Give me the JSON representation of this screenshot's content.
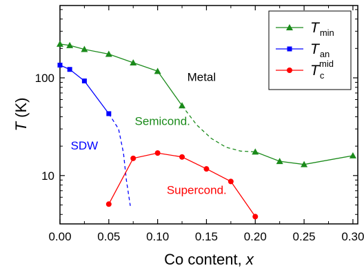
{
  "chart_data": {
    "type": "line",
    "xlabel": "Co content, x",
    "xlabel_prefix": "Co content, ",
    "xlabel_var": "x",
    "ylabel": "T (K)",
    "ylabel_var": "T",
    "ylabel_unit": " (K)",
    "x_ticks": [
      "0.00",
      "0.05",
      "0.10",
      "0.15",
      "0.20",
      "0.25",
      "0.30"
    ],
    "x_tick_values": [
      0.0,
      0.05,
      0.1,
      0.15,
      0.2,
      0.25,
      0.3
    ],
    "y_ticks": [
      "10",
      "100"
    ],
    "y_tick_values": [
      10,
      100
    ],
    "xlim": [
      0.0,
      0.305
    ],
    "ylim": [
      3.2,
      550
    ],
    "y_scale": "log",
    "legend_position": "top-right",
    "series": [
      {
        "name": "T_min",
        "legend_main": "T",
        "legend_sub": "min",
        "legend_sup": "",
        "color": "#1a8a1a",
        "marker": "triangle",
        "points": [
          [
            0.0,
            222
          ],
          [
            0.01,
            215
          ],
          [
            0.025,
            196
          ],
          [
            0.05,
            175
          ],
          [
            0.075,
            143
          ],
          [
            0.1,
            117
          ],
          [
            0.125,
            52
          ],
          [
            0.2,
            17.5
          ],
          [
            0.225,
            14
          ],
          [
            0.25,
            13
          ],
          [
            0.3,
            16
          ]
        ]
      },
      {
        "name": "T_an",
        "legend_main": "T",
        "legend_sub": "an",
        "legend_sup": "",
        "color": "#0000ff",
        "marker": "square",
        "points": [
          [
            0.0,
            135
          ],
          [
            0.01,
            122
          ],
          [
            0.025,
            93
          ],
          [
            0.05,
            43
          ]
        ]
      },
      {
        "name": "T_c^mid",
        "legend_main": "T",
        "legend_sub": "c",
        "legend_sup": "mid",
        "color": "#ff0000",
        "marker": "circle",
        "points": [
          [
            0.05,
            5.1
          ],
          [
            0.075,
            15
          ],
          [
            0.1,
            17
          ],
          [
            0.125,
            15.5
          ],
          [
            0.15,
            11.7
          ],
          [
            0.175,
            8.7
          ],
          [
            0.2,
            3.8
          ]
        ]
      }
    ],
    "dashed_lines": [
      {
        "color": "#1a8a1a",
        "points": [
          [
            0.125,
            52
          ],
          [
            0.14,
            33
          ],
          [
            0.155,
            24
          ],
          [
            0.17,
            19.5
          ],
          [
            0.185,
            17.8
          ],
          [
            0.2,
            17.5
          ]
        ]
      },
      {
        "color": "#0000ff",
        "points": [
          [
            0.05,
            43
          ],
          [
            0.06,
            30
          ],
          [
            0.065,
            17
          ],
          [
            0.068,
            9
          ],
          [
            0.072,
            4.9
          ]
        ]
      }
    ],
    "annotations": [
      {
        "text": "Metal",
        "x": 0.145,
        "y": 93,
        "color": "#000000"
      },
      {
        "text": "Semicond.",
        "x": 0.105,
        "y": 33,
        "color": "#1a8a1a"
      },
      {
        "text": "SDW",
        "x": 0.025,
        "y": 18.5,
        "color": "#0000ff"
      },
      {
        "text": "Supercond.",
        "x": 0.14,
        "y": 6.5,
        "color": "#ff0000"
      }
    ]
  }
}
